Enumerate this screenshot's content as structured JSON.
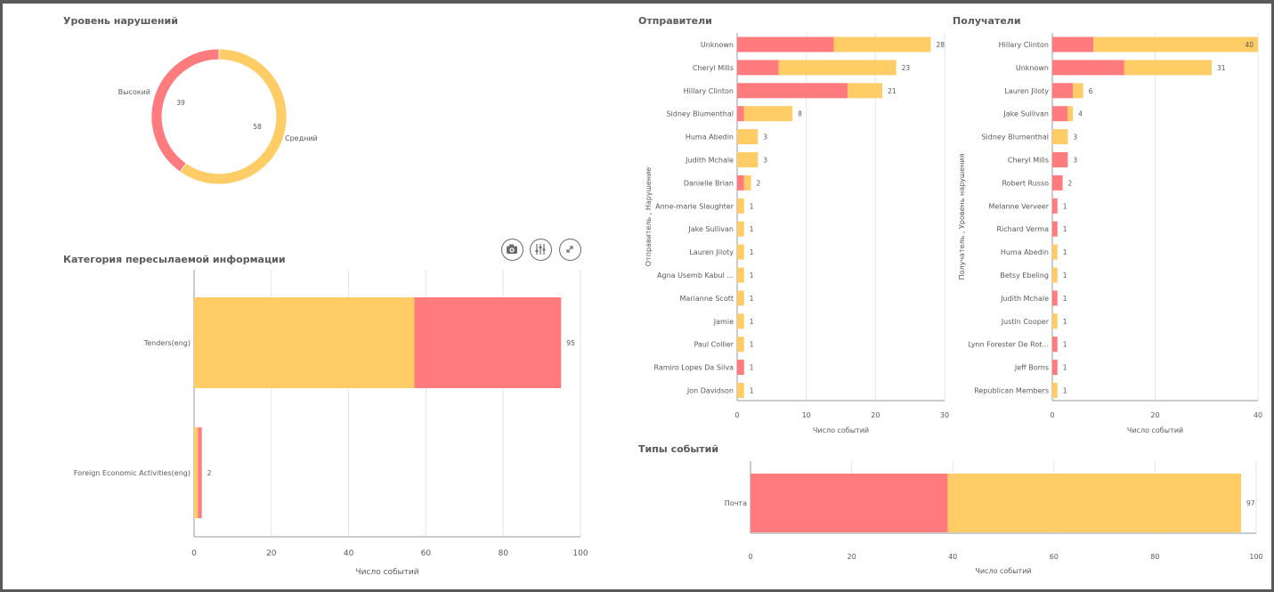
{
  "colors": {
    "high": "#FF7B7E",
    "medium": "#FFCC66",
    "axis": "#9a9a9a",
    "grid": "#e6e6e6",
    "text": "#595959"
  },
  "toolbar": {
    "icons": [
      "camera-icon",
      "sliders-icon",
      "expand-icon"
    ]
  },
  "panels": {
    "violation_level": {
      "title": "Уровень нарушений"
    },
    "info_category": {
      "title": "Категория пересылаемой информации"
    },
    "senders": {
      "title": "Отправители"
    },
    "recipients": {
      "title": "Получатели"
    },
    "event_types": {
      "title": "Типы событий"
    }
  },
  "chart_data": [
    {
      "id": "violation_level",
      "type": "pie",
      "donut": true,
      "title": "Уровень нарушений",
      "slices": [
        {
          "label": "Средний",
          "value": 58,
          "color": "#FFCC66"
        },
        {
          "label": "Высокий",
          "value": 39,
          "color": "#FF7B7E"
        }
      ]
    },
    {
      "id": "info_category",
      "type": "bar",
      "orientation": "horizontal",
      "stacked": true,
      "title": "Категория пересылаемой информации",
      "xlabel": "Число событий",
      "xlim": [
        0,
        100
      ],
      "xticks": [
        "0",
        "20",
        "40",
        "60",
        "80",
        "100"
      ],
      "grid": true,
      "categories": [
        "Tenders(eng)",
        "Foreign Economic Activities(eng)"
      ],
      "series": [
        {
          "key": "medium",
          "values": [
            57,
            1
          ]
        },
        {
          "key": "high",
          "values": [
            38,
            1
          ]
        }
      ],
      "totals": [
        95,
        2
      ]
    },
    {
      "id": "senders",
      "type": "bar",
      "orientation": "horizontal",
      "stacked": true,
      "title": "Отправители",
      "xlabel": "Число событий",
      "ylabel": "Отправитель , Нарушение",
      "xlim": [
        0,
        30
      ],
      "xticks": [
        "0",
        "10",
        "20",
        "30"
      ],
      "grid": true,
      "categories": [
        "Unknown",
        "Cheryl Mills",
        "Hillary Clinton",
        "Sidney Blumenthal",
        "Huma Abedin",
        "Judith Mchale",
        "Danielle Brian",
        "Anne-marie Slaughter",
        "Jake Sullivan",
        "Lauren Jiloty",
        "Agna Usemb Kabul ...",
        "Marianne Scott",
        "Jamie",
        "Paul Collier",
        "Ramiro Lopes Da Silva",
        "Jon Davidson"
      ],
      "series": [
        {
          "key": "high",
          "values": [
            14,
            6,
            16,
            1,
            0,
            0,
            1,
            0,
            0,
            0,
            0,
            0,
            0,
            0,
            1,
            0
          ]
        },
        {
          "key": "medium",
          "values": [
            14,
            17,
            5,
            7,
            3,
            3,
            1,
            1,
            1,
            1,
            1,
            1,
            1,
            1,
            0,
            1
          ]
        }
      ],
      "totals": [
        28,
        23,
        21,
        8,
        3,
        3,
        2,
        1,
        1,
        1,
        1,
        1,
        1,
        1,
        1,
        1
      ]
    },
    {
      "id": "recipients",
      "type": "bar",
      "orientation": "horizontal",
      "stacked": true,
      "title": "Получатели",
      "xlabel": "Число событий",
      "ylabel": "Получатель , Уровень нарушения",
      "xlim": [
        0,
        40
      ],
      "xticks": [
        "0",
        "20",
        "40"
      ],
      "grid": true,
      "categories": [
        "Hillary Clinton",
        "Unknown",
        "Lauren Jiloty",
        "Jake Sullivan",
        "Sidney Blumenthal",
        "Cheryl Mills",
        "Robert Russo",
        "Melanne Verveer",
        "Richard Verma",
        "Huma Abedin",
        "Betsy Ebeling",
        "Judith Mchale",
        "Justin Cooper",
        "Lynn Forester De Rot...",
        "Jeff Borns",
        "Republican Members"
      ],
      "series": [
        {
          "key": "high",
          "values": [
            8,
            14,
            4,
            3,
            0,
            3,
            2,
            1,
            1,
            0,
            0,
            1,
            0,
            1,
            1,
            0
          ]
        },
        {
          "key": "medium",
          "values": [
            32,
            17,
            2,
            1,
            3,
            0,
            0,
            0,
            0,
            1,
            1,
            0,
            1,
            0,
            0,
            1
          ]
        }
      ],
      "totals": [
        40,
        31,
        6,
        4,
        3,
        3,
        2,
        1,
        1,
        1,
        1,
        1,
        1,
        1,
        1,
        1
      ]
    },
    {
      "id": "event_types",
      "type": "bar",
      "orientation": "horizontal",
      "stacked": true,
      "title": "Типы событий",
      "xlabel": "Число событий",
      "xlim": [
        0,
        100
      ],
      "xticks": [
        "0",
        "20",
        "40",
        "60",
        "80",
        "100"
      ],
      "grid": true,
      "categories": [
        "Почта"
      ],
      "series": [
        {
          "key": "high",
          "values": [
            39
          ]
        },
        {
          "key": "medium",
          "values": [
            58
          ]
        }
      ],
      "totals": [
        97
      ]
    }
  ]
}
